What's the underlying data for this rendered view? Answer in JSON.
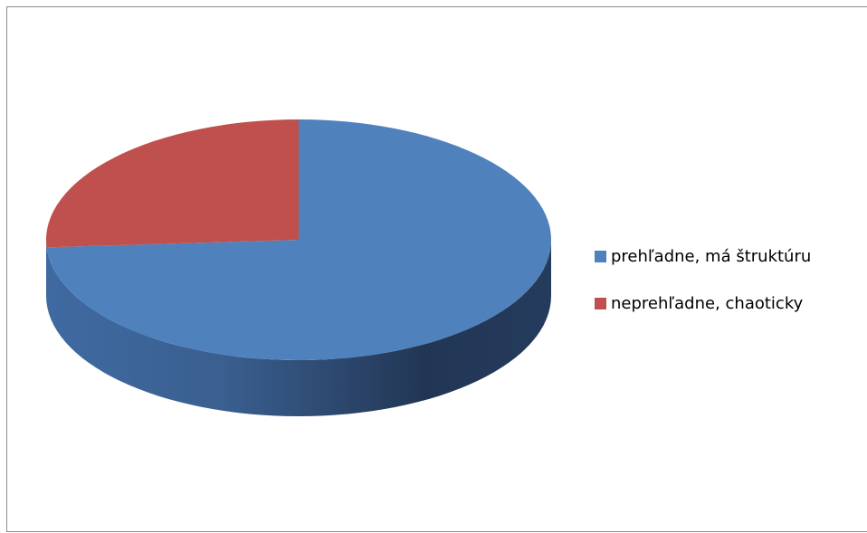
{
  "chart_data": {
    "type": "pie",
    "style": "3d",
    "categories": [
      "prehľadne, má štruktúru",
      "neprehľadne, chaoticky"
    ],
    "values": [
      74,
      26
    ],
    "colors": [
      "#4F81BD",
      "#C0504D"
    ],
    "legend": {
      "position": "right",
      "entries": [
        "prehľadne, má štruktúru",
        "neprehľadne, chaoticky"
      ]
    }
  }
}
